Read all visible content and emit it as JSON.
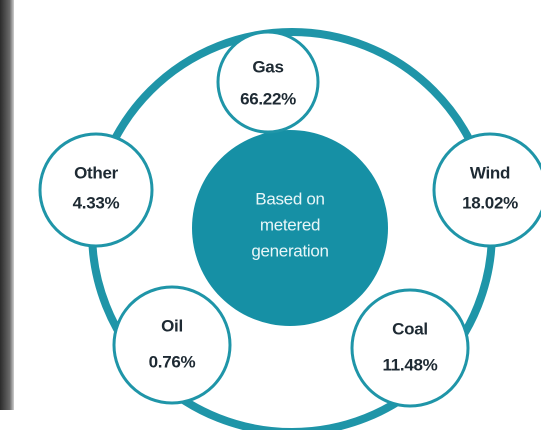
{
  "center": {
    "lines": [
      "Based on",
      "metered",
      "generation"
    ]
  },
  "nodes": [
    {
      "label": "Gas",
      "value": "66.22%"
    },
    {
      "label": "Wind",
      "value": "18.02%"
    },
    {
      "label": "Coal",
      "value": "11.48%"
    },
    {
      "label": "Oil",
      "value": "0.76%"
    },
    {
      "label": "Other",
      "value": "4.33%"
    }
  ]
}
